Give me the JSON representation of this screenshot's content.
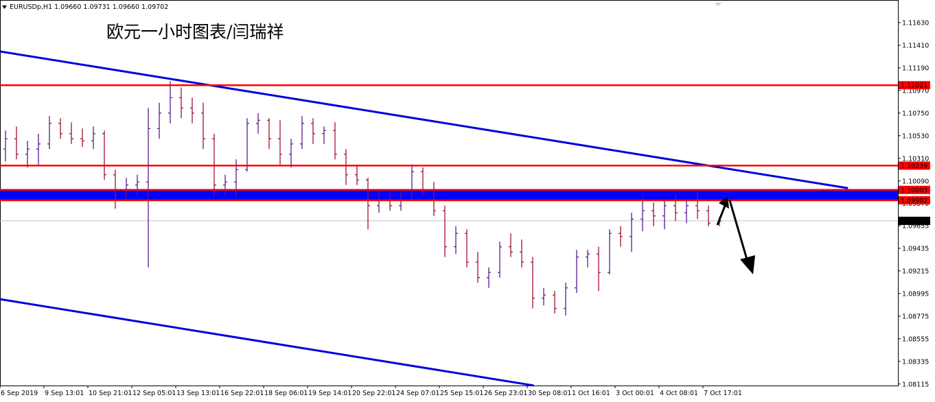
{
  "chart_data": {
    "type": "ohlc",
    "header": "EURUSDp,H1  1.09660 1.09731 1.09660 1.09702",
    "title": "欧元一小时图表/闫瑞祥",
    "up_color": "#5a1a8a",
    "down_color": "#a01030",
    "xlim": [
      0,
      81.75
    ],
    "ylim": [
      1.081,
      1.1185
    ],
    "xticks": [
      {
        "value": 0,
        "label": "6 Sep 2019"
      },
      {
        "value": 4,
        "label": "9 Sep 13:01"
      },
      {
        "value": 8,
        "label": "10 Sep 21:01"
      },
      {
        "value": 12,
        "label": "12 Sep 05:01"
      },
      {
        "value": 16,
        "label": "13 Sep 13:01"
      },
      {
        "value": 20,
        "label": "16 Sep 22:01"
      },
      {
        "value": 24,
        "label": "18 Sep 06:01"
      },
      {
        "value": 28,
        "label": "19 Sep 14:01"
      },
      {
        "value": 32,
        "label": "20 Sep 22:01"
      },
      {
        "value": 36,
        "label": "24 Sep 07:01"
      },
      {
        "value": 40,
        "label": "25 Sep 15:01"
      },
      {
        "value": 44,
        "label": "26 Sep 23:01"
      },
      {
        "value": 48,
        "label": "30 Sep 08:01"
      },
      {
        "value": 52,
        "label": "1 Oct 16:01"
      },
      {
        "value": 56,
        "label": "3 Oct 00:01"
      },
      {
        "value": 60,
        "label": "4 Oct 08:01"
      },
      {
        "value": 64,
        "label": "7 Oct 17:01"
      }
    ],
    "yticks": [
      {
        "value": 1.1163,
        "label": "1.11630"
      },
      {
        "value": 1.1141,
        "label": "1.11410"
      },
      {
        "value": 1.1119,
        "label": "1.11190"
      },
      {
        "value": 1.1097,
        "label": "1.10970"
      },
      {
        "value": 1.1075,
        "label": "1.10750"
      },
      {
        "value": 1.1053,
        "label": "1.10530"
      },
      {
        "value": 1.1031,
        "label": "1.10310"
      },
      {
        "value": 1.1009,
        "label": "1.10090"
      },
      {
        "value": 1.0987,
        "label": "1.09870"
      },
      {
        "value": 1.09655,
        "label": "1.09655"
      },
      {
        "value": 1.09435,
        "label": "1.09435"
      },
      {
        "value": 1.09215,
        "label": "1.09215"
      },
      {
        "value": 1.08995,
        "label": "1.08995"
      },
      {
        "value": 1.08775,
        "label": "1.08775"
      },
      {
        "value": 1.08555,
        "label": "1.08555"
      },
      {
        "value": 1.08335,
        "label": "1.08335"
      },
      {
        "value": 1.08115,
        "label": "1.08115"
      }
    ],
    "levels": [
      {
        "value": 1.11021,
        "label": "1.11021",
        "color": "#ff0000"
      },
      {
        "value": 1.10239,
        "label": "1.10239",
        "color": "#ff0000"
      },
      {
        "value": 1.10003,
        "label": "1.10003",
        "color": "#ff0000",
        "zone": true
      },
      {
        "value": 1.09902,
        "label": "1.09902",
        "color": "#ff0000",
        "zone": true
      }
    ],
    "zone_color": "#0000ff",
    "last_price": {
      "value": 1.09702,
      "label": "1.09702"
    },
    "trendlines": [
      {
        "color": "#0000dd",
        "x": [
          0,
          77.2
        ],
        "y": [
          1.1135,
          1.1002
        ]
      },
      {
        "color": "#0000dd",
        "x": [
          0,
          48.6
        ],
        "y": [
          1.0894,
          1.081
        ]
      }
    ],
    "series": {
      "open": [
        1.104,
        1.105,
        1.1035,
        1.104,
        1.1045,
        1.1065,
        1.1055,
        1.105,
        1.1048,
        1.1055,
        1.1015,
        1.0995,
        1.1005,
        1.1008,
        1.106,
        1.1075,
        1.109,
        1.108,
        1.1075,
        1.105,
        1.1005,
        1.1008,
        1.102,
        1.1065,
        1.1068,
        1.105,
        1.1035,
        1.1045,
        1.1065,
        1.1055,
        1.1058,
        1.1035,
        1.1015,
        1.101,
        1.0985,
        1.099,
        1.0985,
        1.0995,
        1.1018,
        1.1,
        1.098,
        1.0945,
        1.0958,
        1.093,
        1.0915,
        1.092,
        1.0945,
        1.094,
        1.093,
        1.0895,
        1.0898,
        1.0885,
        1.0905,
        1.0935,
        1.0938,
        1.092,
        1.0958,
        1.0955,
        1.0972,
        1.098,
        1.0975,
        1.0985,
        1.0978,
        1.0985,
        1.098,
        1.0968
      ],
      "high": [
        1.1058,
        1.1062,
        1.1048,
        1.1055,
        1.1072,
        1.107,
        1.1066,
        1.106,
        1.1062,
        1.1058,
        1.102,
        1.1012,
        1.1015,
        1.108,
        1.1085,
        1.1106,
        1.11,
        1.109,
        1.1085,
        1.1055,
        1.1015,
        1.103,
        1.107,
        1.1075,
        1.107,
        1.1068,
        1.105,
        1.1072,
        1.107,
        1.1062,
        1.1066,
        1.104,
        1.1025,
        1.1012,
        1.1,
        1.0998,
        1.1,
        1.1025,
        1.1022,
        1.1008,
        1.0985,
        1.0965,
        1.0962,
        1.094,
        1.0925,
        1.095,
        1.0958,
        1.0952,
        1.0935,
        1.0905,
        1.0902,
        1.091,
        1.0942,
        1.0942,
        1.0945,
        1.0962,
        1.0965,
        1.0978,
        1.0995,
        1.0988,
        1.0992,
        1.0996,
        1.099,
        1.0998,
        1.0985,
        1.0974
      ],
      "low": [
        1.1028,
        1.103,
        1.1022,
        1.1025,
        1.104,
        1.105,
        1.1045,
        1.1042,
        1.104,
        1.101,
        1.0982,
        1.099,
        1.0995,
        1.0925,
        1.105,
        1.1065,
        1.107,
        1.1065,
        1.104,
        1.0995,
        1.0995,
        1.0993,
        1.1018,
        1.1055,
        1.104,
        1.1025,
        1.1022,
        1.104,
        1.1045,
        1.1045,
        1.103,
        1.1005,
        1.1005,
        1.0962,
        1.0978,
        1.098,
        1.098,
        1.099,
        1.0995,
        1.0975,
        1.0935,
        1.0938,
        1.0925,
        1.091,
        1.0905,
        1.0915,
        1.0935,
        1.0925,
        1.0885,
        1.0888,
        1.088,
        1.0878,
        1.09,
        1.0925,
        1.0902,
        1.0918,
        1.0945,
        1.094,
        1.096,
        1.0965,
        1.0962,
        1.097,
        1.0968,
        1.0972,
        1.0965,
        1.0965
      ],
      "close": [
        1.105,
        1.1035,
        1.104,
        1.1045,
        1.1065,
        1.1055,
        1.105,
        1.1048,
        1.1055,
        1.1015,
        1.0995,
        1.1005,
        1.1008,
        1.106,
        1.1075,
        1.109,
        1.108,
        1.1075,
        1.105,
        1.1005,
        1.1008,
        1.102,
        1.1065,
        1.1068,
        1.105,
        1.1035,
        1.1045,
        1.1065,
        1.1055,
        1.1058,
        1.1035,
        1.1015,
        1.101,
        1.0985,
        1.099,
        1.0985,
        1.0995,
        1.1018,
        1.1,
        1.098,
        1.0945,
        1.0958,
        1.093,
        1.0915,
        1.092,
        1.0945,
        1.094,
        1.093,
        1.0895,
        1.0898,
        1.0885,
        1.0905,
        1.0935,
        1.0938,
        1.092,
        1.0958,
        1.0955,
        1.0972,
        1.098,
        1.0975,
        1.0985,
        1.0978,
        1.0985,
        1.098,
        1.0968,
        1.097
      ]
    }
  }
}
